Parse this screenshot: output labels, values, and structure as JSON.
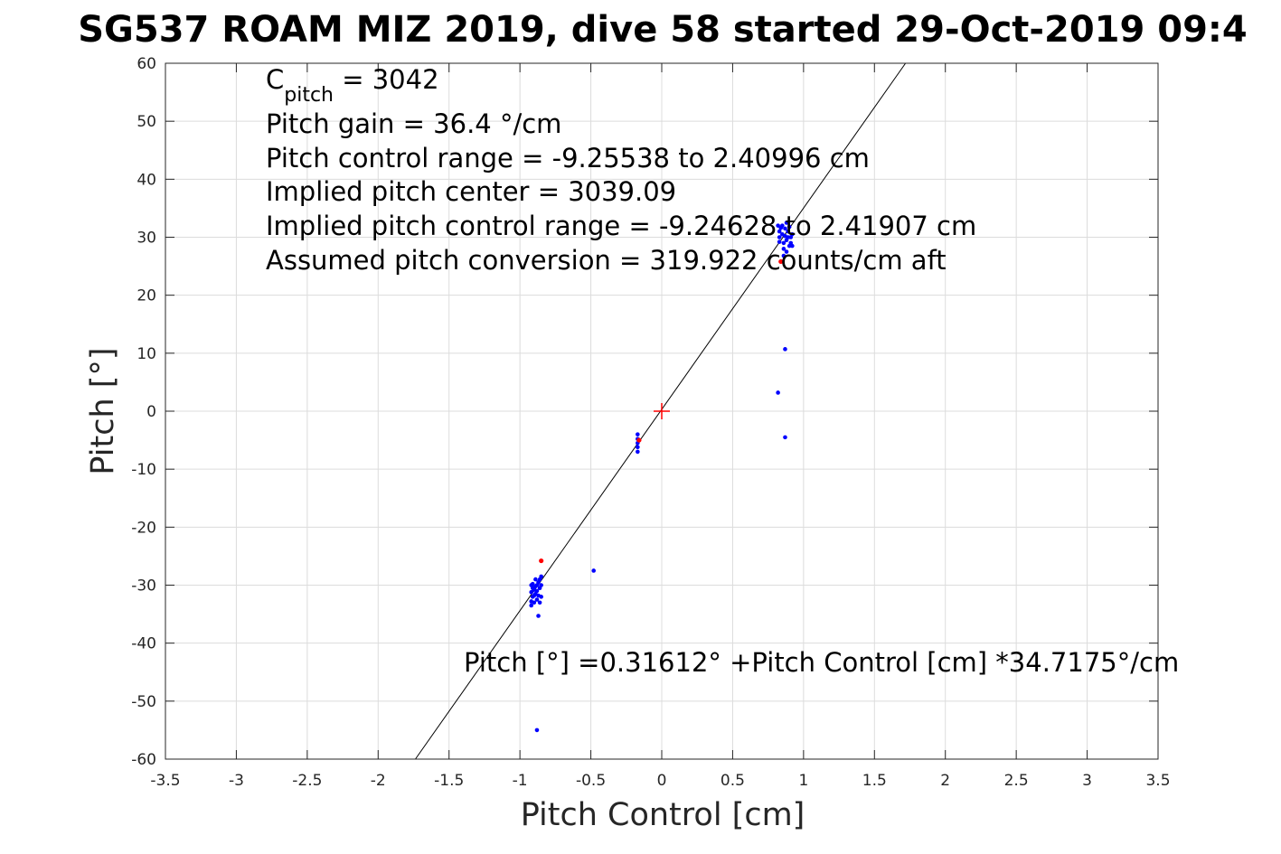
{
  "chart_data": {
    "type": "scatter",
    "title": "SG537 ROAM MIZ 2019, dive 58 started 29-Oct-2019 09:4",
    "xlabel": "Pitch Control [cm]",
    "ylabel": "Pitch [°]",
    "xlim": [
      -3.5,
      3.5
    ],
    "ylim": [
      -60,
      60
    ],
    "xticks": [
      -3.5,
      -3,
      -2.5,
      -2,
      -1.5,
      -1,
      -0.5,
      0,
      0.5,
      1,
      1.5,
      2,
      2.5,
      3,
      3.5
    ],
    "yticks": [
      -60,
      -50,
      -40,
      -30,
      -20,
      -10,
      0,
      10,
      20,
      30,
      40,
      50,
      60
    ],
    "grid": true,
    "annotations": {
      "c_pitch_base": "C",
      "c_pitch_sub": "pitch",
      "c_pitch_value": " = 3042",
      "pitch_gain": "Pitch gain = 36.4 °/cm",
      "control_range": "Pitch control range = -9.25538 to 2.40996 cm",
      "implied_center": "Implied pitch center = 3039.09",
      "implied_range": "Implied pitch control range = -9.24628 to 2.41907 cm",
      "conversion": "Assumed pitch conversion = 319.922 counts/cm aft",
      "fit_equation": "Pitch [°] =0.31612° +Pitch Control [cm] *34.7175°/cm"
    },
    "fit_line": {
      "intercept": 0.31612,
      "slope": 34.7175,
      "color": "#000000"
    },
    "center_marker": {
      "x": 0,
      "y": 0,
      "color": "#ff0000"
    },
    "series": [
      {
        "color": "#0000ff",
        "points": [
          [
            -0.92,
            -33.5
          ],
          [
            -0.92,
            -32.8
          ],
          [
            -0.91,
            -32.0
          ],
          [
            -0.92,
            -31.2
          ],
          [
            -0.91,
            -30.5
          ],
          [
            -0.92,
            -30.0
          ],
          [
            -0.9,
            -33.0
          ],
          [
            -0.9,
            -31.8
          ],
          [
            -0.9,
            -30.8
          ],
          [
            -0.89,
            -31.5
          ],
          [
            -0.89,
            -30.2
          ],
          [
            -0.88,
            -32.5
          ],
          [
            -0.88,
            -31.0
          ],
          [
            -0.88,
            -30.0
          ],
          [
            -0.87,
            -29.5
          ],
          [
            -0.87,
            -31.8
          ],
          [
            -0.86,
            -30.5
          ],
          [
            -0.86,
            -29.0
          ],
          [
            -0.85,
            -32.0
          ],
          [
            -0.85,
            -30.0
          ],
          [
            -0.85,
            -28.5
          ],
          [
            -0.86,
            -33.0
          ],
          [
            -0.89,
            -29.0
          ],
          [
            -0.91,
            -29.8
          ],
          [
            -0.87,
            -35.3
          ],
          [
            -0.88,
            -55.0
          ],
          [
            -0.48,
            -27.5
          ],
          [
            -0.17,
            -4.0
          ],
          [
            -0.17,
            -4.8
          ],
          [
            -0.17,
            -5.5
          ],
          [
            -0.17,
            -6.2
          ],
          [
            -0.17,
            -7.0
          ],
          [
            -0.16,
            -5.0
          ],
          [
            0.82,
            32.0
          ],
          [
            0.83,
            31.0
          ],
          [
            0.83,
            30.0
          ],
          [
            0.83,
            29.2
          ],
          [
            0.84,
            31.6
          ],
          [
            0.85,
            30.5
          ],
          [
            0.85,
            32.0
          ],
          [
            0.86,
            29.0
          ],
          [
            0.86,
            28.0
          ],
          [
            0.87,
            31.5
          ],
          [
            0.87,
            30.2
          ],
          [
            0.88,
            32.5
          ],
          [
            0.88,
            29.5
          ],
          [
            0.88,
            27.5
          ],
          [
            0.89,
            31.0
          ],
          [
            0.89,
            30.0
          ],
          [
            0.9,
            28.5
          ],
          [
            0.9,
            31.8
          ],
          [
            0.91,
            30.0
          ],
          [
            0.91,
            29.0
          ],
          [
            0.92,
            28.5
          ],
          [
            0.92,
            30.5
          ],
          [
            0.86,
            26.8
          ],
          [
            0.87,
            10.7
          ],
          [
            0.82,
            3.2
          ],
          [
            0.87,
            -4.5
          ]
        ]
      },
      {
        "color": "#ff0000",
        "points": [
          [
            -0.85,
            -25.8
          ],
          [
            -0.16,
            -5.0
          ],
          [
            0.84,
            25.8
          ]
        ]
      }
    ]
  }
}
